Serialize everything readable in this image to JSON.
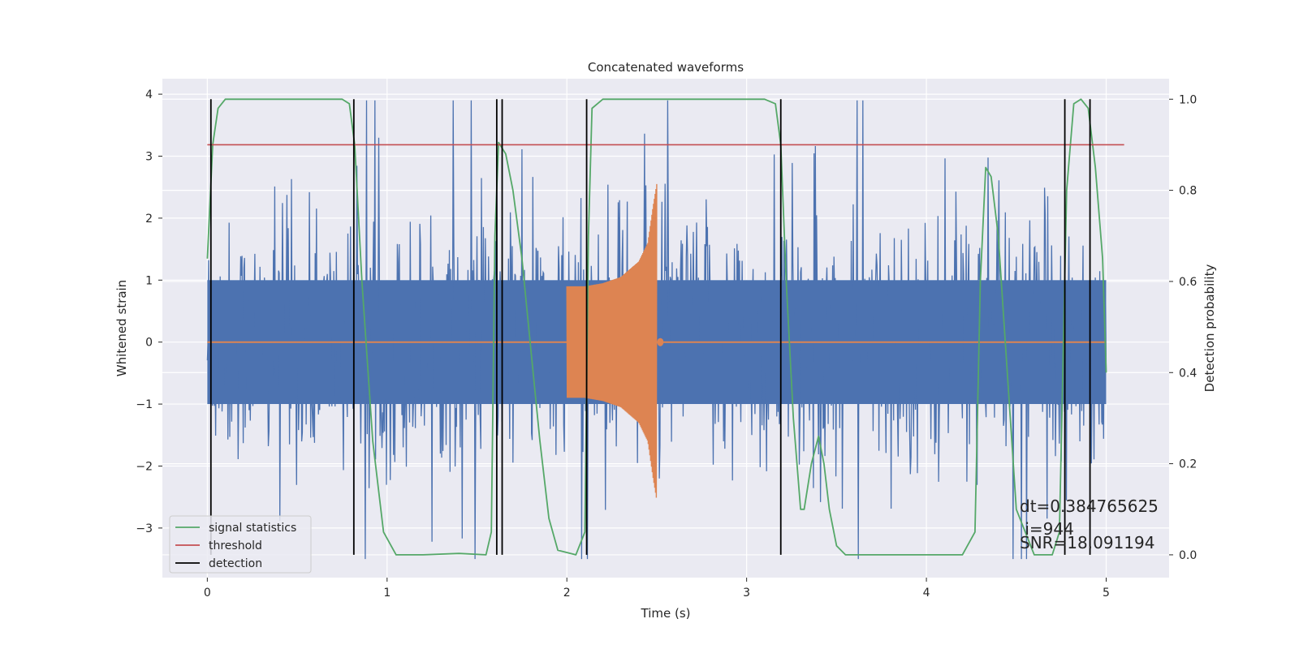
{
  "chart_data": {
    "type": "line",
    "title": "Concatenated waveforms",
    "xlabel": "Time (s)",
    "ylabel": "Whitened strain",
    "ylabel_right": "Detection probability",
    "xlim": [
      -0.25,
      5.35
    ],
    "ylim": [
      -3.8,
      4.25
    ],
    "ylim_right": [
      -0.05,
      1.045
    ],
    "xticks": [
      0,
      1,
      2,
      3,
      4,
      5
    ],
    "yticks": [
      -3,
      -2,
      -1,
      0,
      1,
      2,
      3,
      4
    ],
    "yticks_right": [
      0.0,
      0.2,
      0.4,
      0.6,
      0.8,
      1.0
    ],
    "xtick_labels": [
      "0",
      "1",
      "2",
      "3",
      "4",
      "5"
    ],
    "ytick_labels": [
      "−3",
      "−2",
      "−1",
      "0",
      "1",
      "2",
      "3",
      "4"
    ],
    "ytick_right_labels": [
      "0.0",
      "0.2",
      "0.4",
      "0.6",
      "0.8",
      "1.0"
    ],
    "grid": true,
    "legend_position": "lower-left",
    "colors": {
      "background": "#eaeaf2",
      "noise": "#4c72b0",
      "injection": "#dd8452",
      "signal_statistics": "#55a868",
      "threshold": "#c44e52",
      "detection": "#000000"
    },
    "series": [
      {
        "name": "signal statistics",
        "axis": "right",
        "x": [
          0.0,
          0.03,
          0.06,
          0.1,
          0.2,
          0.5,
          0.75,
          0.79,
          0.82,
          0.86,
          0.92,
          0.98,
          1.05,
          1.2,
          1.4,
          1.55,
          1.58,
          1.6,
          1.62,
          1.66,
          1.7,
          1.75,
          1.8,
          1.85,
          1.9,
          1.95,
          2.05,
          2.1,
          2.12,
          2.14,
          2.2,
          2.5,
          3.1,
          3.16,
          3.19,
          3.22,
          3.26,
          3.3,
          3.32,
          3.36,
          3.4,
          3.43,
          3.46,
          3.5,
          3.55,
          3.7,
          4.2,
          4.27,
          4.3,
          4.33,
          4.36,
          4.4,
          4.45,
          4.5,
          4.6,
          4.7,
          4.74,
          4.78,
          4.82,
          4.86,
          4.9,
          4.94,
          4.98,
          5.0
        ],
        "y": [
          0.65,
          0.9,
          0.98,
          1.0,
          1.0,
          1.0,
          1.0,
          0.99,
          0.9,
          0.6,
          0.25,
          0.05,
          0.0,
          0.0,
          0.003,
          0.0,
          0.05,
          0.7,
          0.905,
          0.88,
          0.8,
          0.65,
          0.45,
          0.25,
          0.08,
          0.01,
          0.0,
          0.05,
          0.7,
          0.98,
          1.0,
          1.0,
          1.0,
          0.99,
          0.9,
          0.6,
          0.3,
          0.1,
          0.1,
          0.2,
          0.26,
          0.2,
          0.1,
          0.02,
          0.0,
          0.0,
          0.0,
          0.05,
          0.6,
          0.85,
          0.83,
          0.7,
          0.4,
          0.1,
          0.0,
          0.0,
          0.05,
          0.8,
          0.99,
          1.0,
          0.98,
          0.85,
          0.65,
          0.4
        ]
      },
      {
        "name": "threshold",
        "axis": "right",
        "x": [
          0.0,
          5.1
        ],
        "y": [
          0.9,
          0.9
        ]
      },
      {
        "name": "detection",
        "axis": "right",
        "type": "vlines",
        "ymin": 0.0,
        "ymax": 1.0,
        "x": [
          0.02,
          0.815,
          1.61,
          1.64,
          2.11,
          3.19,
          4.77,
          4.91
        ]
      },
      {
        "axis": "left",
        "role": "noise",
        "x_range": [
          0.0,
          5.0
        ],
        "typical_band": [
          -1.0,
          1.0
        ],
        "peak_range": [
          -3.5,
          3.9
        ]
      },
      {
        "axis": "left",
        "role": "injection",
        "x_range": [
          2.0,
          2.5
        ],
        "x": [
          2.0,
          2.1,
          2.2,
          2.3,
          2.4,
          2.45,
          2.48,
          2.5
        ],
        "envelope": [
          0.9,
          0.9,
          0.95,
          1.05,
          1.3,
          1.6,
          2.2,
          2.55
        ]
      }
    ],
    "annotations": [
      "dt=0.384765625",
      " i=944",
      "SNR=18.091194"
    ]
  }
}
